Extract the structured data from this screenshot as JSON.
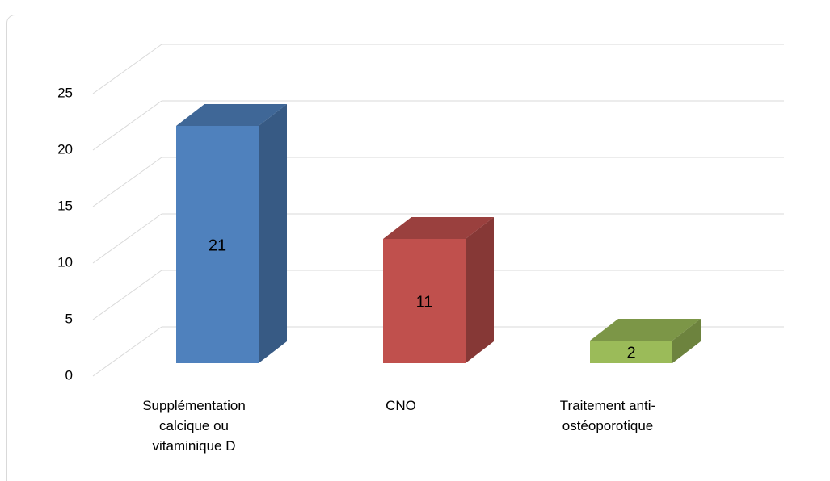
{
  "chart_data": {
    "type": "bar3d",
    "categories": [
      "Supplémentation calcique ou vitaminique D",
      "CNO",
      "Traitement anti-ostéoporotique"
    ],
    "values": [
      21,
      11,
      2
    ],
    "colors": [
      "#4f81bd",
      "#c0504d",
      "#9bbb59"
    ],
    "ylim": [
      0,
      25
    ],
    "yticks": [
      0,
      5,
      10,
      15,
      20,
      25
    ],
    "grid": true
  }
}
